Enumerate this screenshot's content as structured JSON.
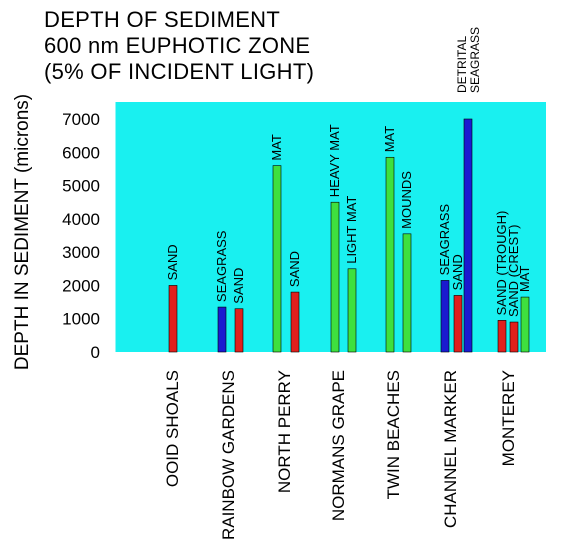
{
  "chart_data": {
    "type": "bar",
    "title_lines": [
      "DEPTH OF SEDIMENT",
      "600 nm EUPHOTIC ZONE",
      "(5% OF INCIDENT LIGHT)"
    ],
    "ylabel": "DEPTH IN SEDIMENT (microns)",
    "xlabel": "",
    "ylim": [
      0,
      7000
    ],
    "yticks": [
      "0",
      "1000",
      "2000",
      "3000",
      "4000",
      "5000",
      "6000",
      "7000"
    ],
    "categories": [
      "OOID SHOALS",
      "RAINBOW GARDENS",
      "NORTH PERRY",
      "NORMANS GRAPE",
      "TWIN BEACHES",
      "CHANNEL MARKER",
      "MONTEREY"
    ],
    "colors": {
      "sand": "#e0201c",
      "seagrass": "#1a1ad0",
      "mat": "#3ee03e",
      "background": "#19f0f0"
    },
    "bars": [
      {
        "category": "OOID SHOALS",
        "label": "SAND",
        "value": 2000,
        "kind": "sand"
      },
      {
        "category": "RAINBOW GARDENS",
        "label": "SEAGRASS",
        "value": 1350,
        "kind": "seagrass"
      },
      {
        "category": "RAINBOW GARDENS",
        "label": "SAND",
        "value": 1300,
        "kind": "sand"
      },
      {
        "category": "NORTH PERRY",
        "label": "MAT",
        "value": 5600,
        "kind": "mat"
      },
      {
        "category": "NORTH PERRY",
        "label": "SAND",
        "value": 1800,
        "kind": "sand"
      },
      {
        "category": "NORMANS GRAPE",
        "label": "HEAVY MAT",
        "value": 4500,
        "kind": "mat"
      },
      {
        "category": "NORMANS GRAPE",
        "label": "LIGHT MAT",
        "value": 2500,
        "kind": "mat"
      },
      {
        "category": "TWIN BEACHES",
        "label": "MAT",
        "value": 5850,
        "kind": "mat"
      },
      {
        "category": "TWIN BEACHES",
        "label": "MOUNDS",
        "value": 3550,
        "kind": "mat"
      },
      {
        "category": "CHANNEL MARKER",
        "label": "SEAGRASS",
        "value": 2150,
        "kind": "seagrass"
      },
      {
        "category": "CHANNEL MARKER",
        "label": "SAND",
        "value": 1700,
        "kind": "sand"
      },
      {
        "category": "CHANNEL MARKER",
        "label": "DETRITAL SEAGRASS",
        "value": 7000,
        "kind": "seagrass"
      },
      {
        "category": "MONTEREY",
        "label": "SAND (TROUGH)",
        "value": 950,
        "kind": "sand"
      },
      {
        "category": "MONTEREY",
        "label": "SAND (CREST)",
        "value": 900,
        "kind": "sand"
      },
      {
        "category": "MONTEREY",
        "label": "MAT",
        "value": 1650,
        "kind": "mat"
      }
    ]
  }
}
